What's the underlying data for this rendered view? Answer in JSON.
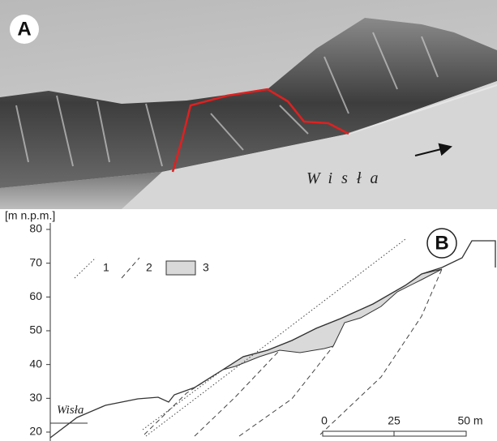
{
  "panel_a": {
    "label": "A",
    "river_label": "Wisła"
  },
  "panel_b": {
    "label": "B",
    "y_axis": {
      "title": "[m n.p.m.]",
      "ticks": [
        80,
        70,
        60,
        50,
        40,
        30,
        20
      ]
    },
    "legend": [
      "1",
      "2",
      "3"
    ],
    "river_label": "Wisła",
    "scale_bar": [
      "0",
      "25",
      "50 m"
    ]
  }
}
